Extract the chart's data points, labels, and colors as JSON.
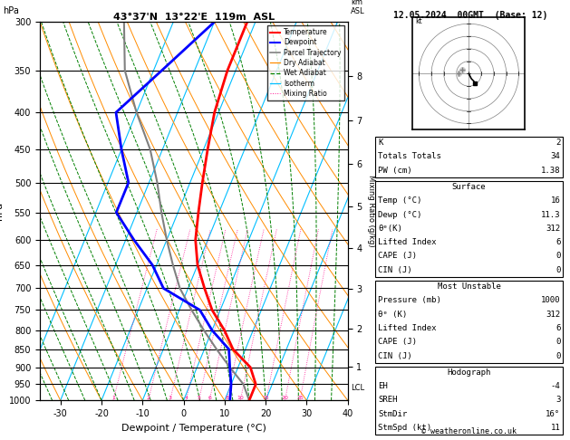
{
  "title_left": "43°37'N  13°22'E  119m  ASL",
  "title_right": "12.05.2024  00GMT  (Base: 12)",
  "xlabel": "Dewpoint / Temperature (°C)",
  "ylabel_left": "hPa",
  "ylabel_right2": "Mixing Ratio (g/kg)",
  "pressure_levels": [
    300,
    350,
    400,
    450,
    500,
    550,
    600,
    650,
    700,
    750,
    800,
    850,
    900,
    950,
    1000
  ],
  "temp_x": [
    16,
    16,
    13,
    7,
    3,
    -2,
    -6,
    -10,
    -13,
    -15,
    -17,
    -19,
    -21,
    -22,
    -22
  ],
  "temp_p": [
    1000,
    950,
    900,
    850,
    800,
    750,
    700,
    650,
    600,
    550,
    500,
    450,
    400,
    350,
    300
  ],
  "dewp_x": [
    11.3,
    10,
    8,
    6,
    0,
    -5,
    -16,
    -21,
    -28,
    -35,
    -35,
    -40,
    -45,
    -38,
    -30
  ],
  "dewp_p": [
    1000,
    950,
    900,
    850,
    800,
    750,
    700,
    650,
    600,
    550,
    500,
    450,
    400,
    350,
    300
  ],
  "parcel_x": [
    16,
    13,
    8,
    3,
    -2,
    -7,
    -12,
    -16,
    -20,
    -24,
    -28,
    -33,
    -40,
    -47,
    -52
  ],
  "parcel_p": [
    1000,
    950,
    900,
    850,
    800,
    750,
    700,
    650,
    600,
    550,
    500,
    450,
    400,
    350,
    300
  ],
  "temp_color": "#ff0000",
  "dewp_color": "#0000ff",
  "parcel_color": "#808080",
  "dry_adiabat_color": "#ff8c00",
  "wet_adiabat_color": "#008000",
  "isotherm_color": "#00bfff",
  "mixing_ratio_color": "#ff1493",
  "background": "#ffffff",
  "table_K": "2",
  "table_TT": "34",
  "table_PW": "1.38",
  "table_temp": "16",
  "table_dewp": "11.3",
  "table_theta_e": "312",
  "table_LI": "6",
  "table_CAPE": "0",
  "table_CIN": "0",
  "table_mu_pres": "1000",
  "table_mu_theta_e": "312",
  "table_mu_LI": "6",
  "table_mu_CAPE": "0",
  "table_mu_CIN": "0",
  "table_EH": "-4",
  "table_SREH": "3",
  "table_StmDir": "16°",
  "table_StmSpd": "11",
  "mixing_ratio_values": [
    1,
    2,
    3,
    4,
    5,
    6,
    8,
    10,
    15,
    20,
    25
  ],
  "km_ticks": [
    1,
    2,
    3,
    4,
    5,
    6,
    7,
    8
  ],
  "lcl_label": "LCL",
  "lcl_pressure": 960,
  "copyright": "© weatheronline.co.uk"
}
